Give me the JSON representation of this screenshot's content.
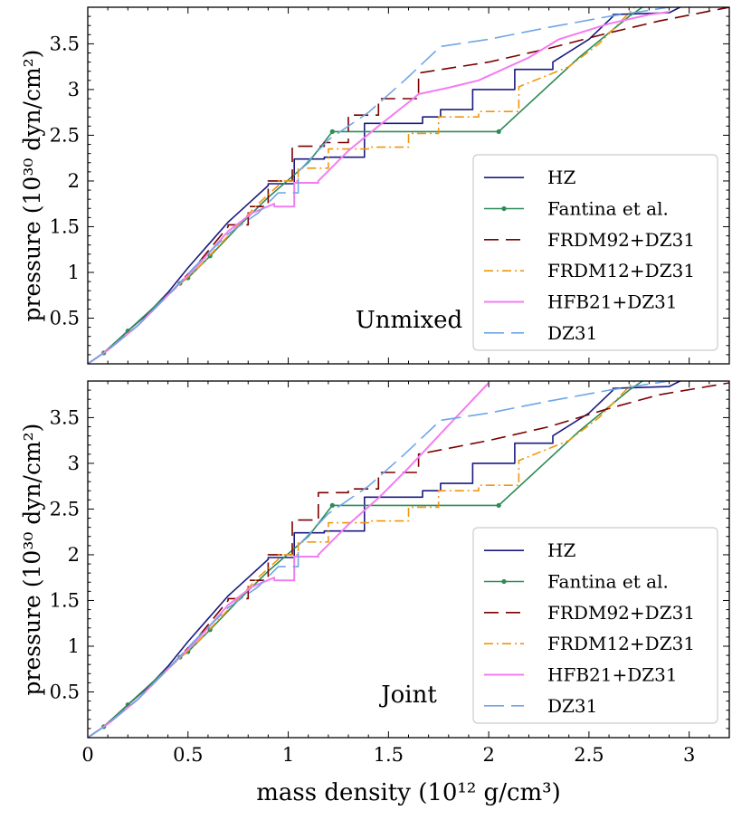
{
  "chart_data": [
    {
      "type": "line",
      "panel_label": "Unmixed",
      "xlabel": "",
      "ylabel": "pressure (10³⁰ dyn/cm²)",
      "xlim": [
        0,
        3.2
      ],
      "ylim": [
        0,
        3.9
      ],
      "yticks": [
        "0.5",
        "1",
        "1.5",
        "2",
        "2.5",
        "3",
        "3.5"
      ],
      "legend": [
        "HZ",
        "Fantina et al.",
        "FRDM92+DZ31",
        "FRDM12+DZ31",
        "HFB21+DZ31",
        "DZ31"
      ],
      "series": [
        {
          "name": "HZ",
          "color": "#1a1a80",
          "style": "solid",
          "markers": false,
          "x": [
            0,
            0.08,
            0.2,
            0.3,
            0.4,
            0.5,
            0.6,
            0.7,
            0.8,
            0.9,
            0.9,
            1.03,
            1.03,
            1.18,
            1.18,
            1.38,
            1.38,
            1.67,
            1.67,
            1.76,
            1.76,
            1.92,
            1.92,
            2.13,
            2.13,
            2.32,
            2.32,
            2.5,
            2.62,
            2.62,
            2.9,
            3.0
          ],
          "y": [
            0,
            0.12,
            0.36,
            0.55,
            0.78,
            1.05,
            1.3,
            1.55,
            1.75,
            1.95,
            1.97,
            1.97,
            2.24,
            2.24,
            2.26,
            2.26,
            2.63,
            2.63,
            2.7,
            2.7,
            2.78,
            2.78,
            3.0,
            3.0,
            3.22,
            3.22,
            3.3,
            3.55,
            3.8,
            3.82,
            3.84,
            3.95
          ]
        },
        {
          "name": "Fantina et al.",
          "color": "#2e8b57",
          "style": "solid",
          "markers": true,
          "marker_x": [
            0.08,
            0.2,
            0.46,
            0.5,
            0.61,
            1.22,
            2.05
          ],
          "marker_y": [
            0.12,
            0.36,
            0.88,
            0.94,
            1.18,
            2.54,
            2.54
          ],
          "x": [
            0,
            0.08,
            0.2,
            0.46,
            0.5,
            0.61,
            0.75,
            0.9,
            1.1,
            1.22,
            2.05,
            2.45,
            2.7,
            2.8
          ],
          "y": [
            0,
            0.12,
            0.36,
            0.88,
            0.94,
            1.18,
            1.5,
            1.82,
            2.2,
            2.54,
            2.54,
            3.35,
            3.8,
            3.95
          ]
        },
        {
          "name": "FRDM92+DZ31",
          "color": "#7a0000",
          "style": "dash",
          "markers": false,
          "x": [
            0,
            0.1,
            0.25,
            0.4,
            0.55,
            0.7,
            0.7,
            0.8,
            0.8,
            0.9,
            0.9,
            1.02,
            1.02,
            1.18,
            1.18,
            1.3,
            1.3,
            1.45,
            1.45,
            1.65,
            1.65,
            2.0,
            2.3,
            2.6,
            2.85,
            3.2
          ],
          "y": [
            0,
            0.15,
            0.42,
            0.75,
            1.1,
            1.5,
            1.52,
            1.52,
            1.72,
            1.72,
            2.0,
            2.0,
            2.38,
            2.38,
            2.42,
            2.42,
            2.72,
            2.72,
            2.9,
            2.9,
            3.18,
            3.3,
            3.45,
            3.62,
            3.75,
            3.9
          ]
        },
        {
          "name": "FRDM12+DZ31",
          "color": "#f0960a",
          "style": "dashdot",
          "markers": false,
          "x": [
            0,
            0.1,
            0.25,
            0.4,
            0.55,
            0.7,
            0.85,
            0.95,
            0.95,
            1.05,
            1.05,
            1.2,
            1.2,
            1.4,
            1.4,
            1.6,
            1.6,
            1.75,
            1.75,
            1.95,
            1.95,
            2.15,
            2.15,
            2.4,
            2.55,
            2.75
          ],
          "y": [
            0,
            0.15,
            0.42,
            0.75,
            1.05,
            1.4,
            1.75,
            1.95,
            2.0,
            2.0,
            2.14,
            2.14,
            2.35,
            2.35,
            2.37,
            2.37,
            2.52,
            2.52,
            2.7,
            2.7,
            2.76,
            2.76,
            3.03,
            3.25,
            3.5,
            3.95
          ]
        },
        {
          "name": "HFB21+DZ31",
          "color": "#f37cf3",
          "style": "solid",
          "markers": false,
          "x": [
            0,
            0.1,
            0.25,
            0.4,
            0.55,
            0.7,
            0.82,
            0.93,
            0.93,
            1.03,
            1.03,
            1.15,
            1.15,
            1.3,
            1.45,
            1.6,
            1.65,
            1.8,
            1.95,
            2.05,
            2.2,
            2.35,
            2.6,
            2.8,
            2.9
          ],
          "y": [
            0,
            0.15,
            0.42,
            0.75,
            1.08,
            1.45,
            1.65,
            1.75,
            1.72,
            1.72,
            1.98,
            1.98,
            2.0,
            2.33,
            2.6,
            2.86,
            2.95,
            3.02,
            3.1,
            3.2,
            3.35,
            3.55,
            3.72,
            3.82,
            3.85
          ]
        },
        {
          "name": "DZ31",
          "color": "#6ea6e6",
          "style": "longdash",
          "markers": false,
          "x": [
            0,
            0.1,
            0.25,
            0.4,
            0.55,
            0.7,
            0.85,
            0.95,
            0.95,
            1.05,
            1.05,
            1.2,
            1.4,
            1.58,
            1.76,
            2.0,
            2.3,
            2.6,
            2.9
          ],
          "y": [
            0,
            0.15,
            0.42,
            0.75,
            1.1,
            1.42,
            1.65,
            1.87,
            1.87,
            1.87,
            2.1,
            2.45,
            2.75,
            3.1,
            3.47,
            3.55,
            3.68,
            3.8,
            3.9
          ]
        }
      ]
    },
    {
      "type": "line",
      "panel_label": "Joint",
      "xlabel": "mass density (10¹² g/cm³)",
      "ylabel": "pressure (10³⁰ dyn/cm²)",
      "xlim": [
        0,
        3.2
      ],
      "ylim": [
        0,
        3.9
      ],
      "xticks": [
        "0",
        "0.5",
        "1",
        "1.5",
        "2",
        "2.5",
        "3"
      ],
      "yticks": [
        "0.5",
        "1",
        "1.5",
        "2",
        "2.5",
        "3",
        "3.5"
      ],
      "legend": [
        "HZ",
        "Fantina et al.",
        "FRDM92+DZ31",
        "FRDM12+DZ31",
        "HFB21+DZ31",
        "DZ31"
      ],
      "series": [
        {
          "name": "HZ",
          "color": "#1a1a80",
          "style": "solid",
          "markers": false,
          "x": [
            0,
            0.08,
            0.2,
            0.3,
            0.4,
            0.5,
            0.6,
            0.7,
            0.8,
            0.9,
            0.9,
            1.03,
            1.03,
            1.18,
            1.18,
            1.38,
            1.38,
            1.67,
            1.67,
            1.76,
            1.76,
            1.92,
            1.92,
            2.13,
            2.13,
            2.32,
            2.32,
            2.5,
            2.62,
            2.62,
            2.9,
            3.0
          ],
          "y": [
            0,
            0.12,
            0.36,
            0.55,
            0.78,
            1.05,
            1.3,
            1.55,
            1.75,
            1.95,
            1.97,
            1.97,
            2.24,
            2.24,
            2.26,
            2.26,
            2.63,
            2.63,
            2.7,
            2.7,
            2.78,
            2.78,
            3.0,
            3.0,
            3.22,
            3.22,
            3.3,
            3.55,
            3.8,
            3.82,
            3.84,
            3.95
          ]
        },
        {
          "name": "Fantina et al.",
          "color": "#2e8b57",
          "style": "solid",
          "markers": true,
          "marker_x": [
            0.08,
            0.2,
            0.46,
            0.5,
            0.61,
            1.22,
            2.05
          ],
          "marker_y": [
            0.12,
            0.36,
            0.88,
            0.94,
            1.18,
            2.54,
            2.54
          ],
          "x": [
            0,
            0.08,
            0.2,
            0.46,
            0.5,
            0.61,
            0.75,
            0.9,
            1.1,
            1.22,
            2.05,
            2.45,
            2.7,
            2.8
          ],
          "y": [
            0,
            0.12,
            0.36,
            0.88,
            0.94,
            1.18,
            1.5,
            1.82,
            2.2,
            2.54,
            2.54,
            3.35,
            3.8,
            3.95
          ]
        },
        {
          "name": "FRDM92+DZ31",
          "color": "#7a0000",
          "style": "dash",
          "markers": false,
          "x": [
            0,
            0.1,
            0.25,
            0.4,
            0.55,
            0.7,
            0.7,
            0.8,
            0.8,
            0.9,
            0.9,
            1.02,
            1.02,
            1.15,
            1.15,
            1.3,
            1.3,
            1.45,
            1.45,
            1.65,
            1.65,
            2.0,
            2.3,
            2.6,
            2.85,
            3.2
          ],
          "y": [
            0,
            0.15,
            0.42,
            0.75,
            1.1,
            1.5,
            1.52,
            1.52,
            1.72,
            1.72,
            2.0,
            2.0,
            2.38,
            2.38,
            2.68,
            2.68,
            2.72,
            2.72,
            2.9,
            2.9,
            3.1,
            3.25,
            3.4,
            3.6,
            3.75,
            3.88
          ]
        },
        {
          "name": "FRDM12+DZ31",
          "color": "#f0960a",
          "style": "dashdot",
          "markers": false,
          "x": [
            0,
            0.1,
            0.25,
            0.4,
            0.55,
            0.7,
            0.85,
            0.95,
            0.95,
            1.05,
            1.05,
            1.2,
            1.2,
            1.4,
            1.4,
            1.6,
            1.6,
            1.75,
            1.75,
            1.95,
            1.95,
            2.15,
            2.15,
            2.4,
            2.55,
            2.75
          ],
          "y": [
            0,
            0.15,
            0.42,
            0.75,
            1.05,
            1.4,
            1.75,
            1.95,
            2.0,
            2.0,
            2.14,
            2.14,
            2.35,
            2.35,
            2.37,
            2.37,
            2.52,
            2.52,
            2.7,
            2.7,
            2.76,
            2.76,
            3.03,
            3.25,
            3.5,
            3.95
          ]
        },
        {
          "name": "HFB21+DZ31",
          "color": "#f37cf3",
          "style": "solid",
          "markers": false,
          "x": [
            0,
            0.1,
            0.25,
            0.4,
            0.55,
            0.7,
            0.82,
            0.93,
            0.93,
            1.03,
            1.03,
            1.15,
            1.15,
            1.3,
            1.45,
            1.6,
            1.75,
            1.9,
            2.0
          ],
          "y": [
            0,
            0.15,
            0.42,
            0.75,
            1.08,
            1.45,
            1.65,
            1.75,
            1.72,
            1.72,
            1.98,
            1.98,
            2.0,
            2.33,
            2.62,
            2.95,
            3.3,
            3.65,
            3.88
          ]
        },
        {
          "name": "DZ31",
          "color": "#6ea6e6",
          "style": "longdash",
          "markers": false,
          "x": [
            0,
            0.1,
            0.25,
            0.4,
            0.55,
            0.7,
            0.85,
            0.95,
            0.95,
            1.05,
            1.05,
            1.2,
            1.4,
            1.58,
            1.76,
            2.0,
            2.3,
            2.6,
            2.9
          ],
          "y": [
            0,
            0.15,
            0.42,
            0.75,
            1.1,
            1.42,
            1.65,
            1.87,
            1.87,
            1.87,
            2.1,
            2.45,
            2.75,
            3.1,
            3.47,
            3.55,
            3.68,
            3.8,
            3.9
          ]
        }
      ]
    }
  ]
}
